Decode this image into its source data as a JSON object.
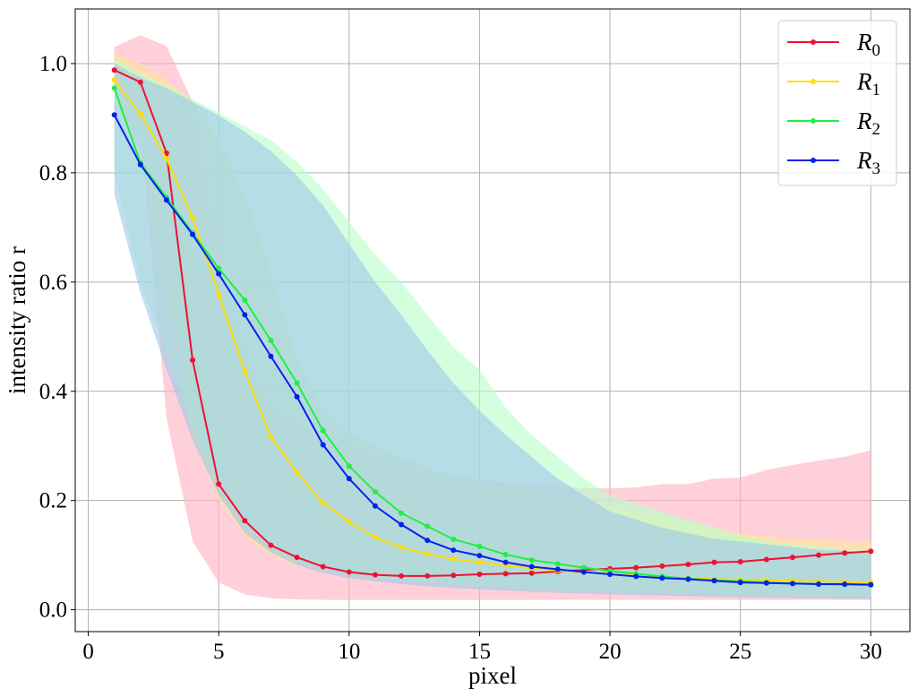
{
  "chart_data": {
    "type": "line",
    "xlabel": "pixel",
    "ylabel": "intensity ratio r",
    "xlim": [
      -0.5,
      31.5
    ],
    "ylim": [
      -0.04,
      1.1
    ],
    "x_ticks": [
      0,
      5,
      10,
      15,
      20,
      25,
      30
    ],
    "y_ticks": [
      0.0,
      0.2,
      0.4,
      0.6,
      0.8,
      1.0
    ],
    "x_tick_labels": [
      "0",
      "5",
      "10",
      "15",
      "20",
      "25",
      "30"
    ],
    "y_tick_labels": [
      "0.0",
      "0.2",
      "0.4",
      "0.6",
      "0.8",
      "1.0"
    ],
    "grid": true,
    "legend_position": "top-right",
    "x": [
      1,
      2,
      3,
      4,
      5,
      6,
      7,
      8,
      9,
      10,
      11,
      12,
      13,
      14,
      15,
      16,
      17,
      18,
      19,
      20,
      21,
      22,
      23,
      24,
      25,
      26,
      27,
      28,
      29,
      30
    ],
    "series": [
      {
        "name": "R",
        "subscript": "0",
        "color": "#ee1133",
        "band_color": "#ffb3c1",
        "values": [
          0.988,
          0.966,
          0.836,
          0.457,
          0.23,
          0.163,
          0.118,
          0.096,
          0.079,
          0.069,
          0.064,
          0.062,
          0.062,
          0.063,
          0.065,
          0.066,
          0.067,
          0.07,
          0.073,
          0.075,
          0.077,
          0.08,
          0.083,
          0.087,
          0.088,
          0.092,
          0.096,
          0.1,
          0.104,
          0.107
        ],
        "lower": [
          0.96,
          0.88,
          0.35,
          0.125,
          0.05,
          0.028,
          0.021,
          0.019,
          0.018,
          0.018,
          0.018,
          0.018,
          0.018,
          0.018,
          0.018,
          0.018,
          0.018,
          0.018,
          0.018,
          0.018,
          0.018,
          0.018,
          0.018,
          0.018,
          0.018,
          0.018,
          0.018,
          0.018,
          0.018,
          0.018
        ],
        "upper": [
          1.03,
          1.052,
          1.032,
          0.93,
          0.64,
          0.47,
          0.37,
          0.345,
          0.315,
          0.292,
          0.285,
          0.27,
          0.258,
          0.245,
          0.238,
          0.232,
          0.228,
          0.226,
          0.223,
          0.222,
          0.224,
          0.23,
          0.23,
          0.24,
          0.242,
          0.256,
          0.265,
          0.273,
          0.28,
          0.292
        ]
      },
      {
        "name": "R",
        "subscript": "1",
        "color": "#ffdd00",
        "band_color": "#ffe89a",
        "values": [
          0.97,
          0.908,
          0.826,
          0.718,
          0.577,
          0.437,
          0.316,
          0.251,
          0.196,
          0.161,
          0.133,
          0.114,
          0.102,
          0.093,
          0.087,
          0.081,
          0.076,
          0.072,
          0.069,
          0.066,
          0.063,
          0.06,
          0.058,
          0.056,
          0.055,
          0.054,
          0.053,
          0.052,
          0.051,
          0.05
        ],
        "lower": [
          0.95,
          0.84,
          0.56,
          0.31,
          0.2,
          0.135,
          0.098,
          0.081,
          0.07,
          0.063,
          0.058,
          0.054,
          0.05,
          0.046,
          0.043,
          0.04,
          0.038,
          0.036,
          0.034,
          0.033,
          0.032,
          0.031,
          0.03,
          0.029,
          0.028,
          0.027,
          0.027,
          0.026,
          0.026,
          0.025
        ],
        "upper": [
          1.02,
          1.0,
          0.97,
          0.93,
          0.86,
          0.76,
          0.62,
          0.46,
          0.37,
          0.325,
          0.3,
          0.28,
          0.26,
          0.24,
          0.23,
          0.225,
          0.22,
          0.21,
          0.2,
          0.19,
          0.18,
          0.17,
          0.16,
          0.15,
          0.14,
          0.135,
          0.13,
          0.128,
          0.126,
          0.124
        ]
      },
      {
        "name": "R",
        "subscript": "2",
        "color": "#22ee44",
        "band_color": "#b9ffcb",
        "values": [
          0.955,
          0.818,
          0.755,
          0.69,
          0.625,
          0.567,
          0.493,
          0.415,
          0.328,
          0.263,
          0.216,
          0.177,
          0.153,
          0.129,
          0.116,
          0.101,
          0.091,
          0.084,
          0.077,
          0.071,
          0.066,
          0.061,
          0.057,
          0.054,
          0.052,
          0.05,
          0.048,
          0.047,
          0.046,
          0.045
        ],
        "lower": [
          0.8,
          0.6,
          0.47,
          0.33,
          0.23,
          0.155,
          0.115,
          0.09,
          0.075,
          0.065,
          0.058,
          0.052,
          0.048,
          0.045,
          0.042,
          0.04,
          0.038,
          0.036,
          0.034,
          0.032,
          0.03,
          0.029,
          0.028,
          0.027,
          0.026,
          0.025,
          0.025,
          0.024,
          0.024,
          0.024
        ],
        "upper": [
          1.01,
          0.98,
          0.96,
          0.935,
          0.91,
          0.885,
          0.86,
          0.82,
          0.77,
          0.71,
          0.65,
          0.6,
          0.54,
          0.48,
          0.44,
          0.37,
          0.32,
          0.28,
          0.24,
          0.21,
          0.195,
          0.18,
          0.165,
          0.15,
          0.135,
          0.125,
          0.12,
          0.115,
          0.11,
          0.108
        ]
      },
      {
        "name": "R",
        "subscript": "3",
        "color": "#0022ee",
        "band_color": "#9fc8e8",
        "values": [
          0.906,
          0.815,
          0.75,
          0.687,
          0.615,
          0.54,
          0.464,
          0.39,
          0.302,
          0.24,
          0.19,
          0.156,
          0.127,
          0.109,
          0.099,
          0.087,
          0.079,
          0.074,
          0.069,
          0.065,
          0.061,
          0.058,
          0.056,
          0.053,
          0.05,
          0.049,
          0.048,
          0.047,
          0.047,
          0.046
        ],
        "lower": [
          0.76,
          0.58,
          0.44,
          0.31,
          0.21,
          0.14,
          0.105,
          0.082,
          0.067,
          0.058,
          0.052,
          0.047,
          0.043,
          0.04,
          0.037,
          0.035,
          0.033,
          0.031,
          0.03,
          0.028,
          0.027,
          0.026,
          0.025,
          0.024,
          0.023,
          0.022,
          0.021,
          0.021,
          0.02,
          0.02
        ],
        "upper": [
          1.0,
          0.975,
          0.955,
          0.93,
          0.905,
          0.875,
          0.84,
          0.795,
          0.74,
          0.67,
          0.6,
          0.54,
          0.475,
          0.415,
          0.365,
          0.32,
          0.28,
          0.24,
          0.21,
          0.18,
          0.165,
          0.15,
          0.14,
          0.13,
          0.125,
          0.12,
          0.115,
          0.11,
          0.108,
          0.105
        ]
      }
    ]
  }
}
